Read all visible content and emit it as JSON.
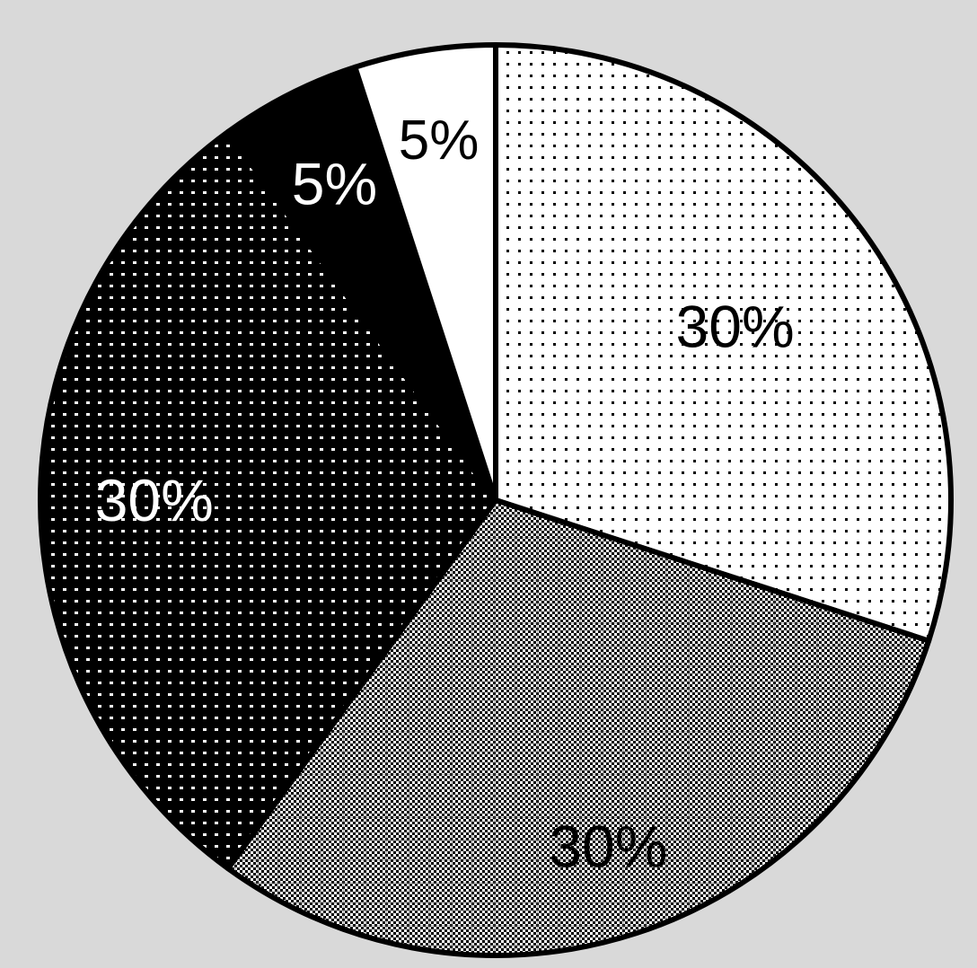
{
  "chart_data": {
    "type": "pie",
    "start_angle_deg": 0,
    "direction": "clockwise",
    "slices": [
      {
        "label": "30%",
        "value": 30,
        "pattern": "sparse-dots-on-white",
        "label_color": "#000000"
      },
      {
        "label": "30%",
        "value": 30,
        "pattern": "dense-checker-grid",
        "label_color": "#000000"
      },
      {
        "label": "30%",
        "value": 30,
        "pattern": "white-dots-on-black",
        "label_color": "#ffffff"
      },
      {
        "label": "5%",
        "value": 5,
        "pattern": "solid-black",
        "label_color": "#ffffff"
      },
      {
        "label": "5%",
        "value": 5,
        "pattern": "solid-white",
        "label_color": "#000000"
      }
    ],
    "colors": {
      "background": "#d9d9d9",
      "outline": "#000000"
    }
  }
}
